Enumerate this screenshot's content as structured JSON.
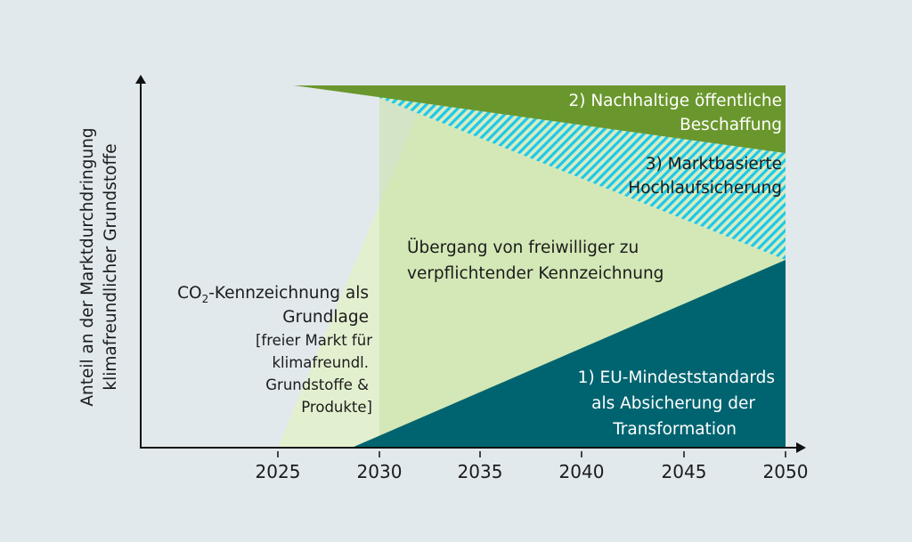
{
  "y_axis_label": [
    "Anteil an der Marktdurchdringung",
    "klimafreundlicher Grundstoffe"
  ],
  "x_ticks": [
    "2025",
    "2030",
    "2035",
    "2040",
    "2045",
    "2050"
  ],
  "areas": {
    "public_procurement": [
      "2) Nachhaltige öffentliche",
      "Beschaffung"
    ],
    "market_ramp_up": [
      "3) Marktbasierte",
      "Hochlaufsicherung"
    ],
    "transition": [
      "Übergang von freiwilliger zu",
      "verpflichtender Kennzeichnung"
    ],
    "co2_label": {
      "prefix": "CO",
      "sub": "2",
      "suffix": "-Kennzeichnung als",
      "line2": "Grundlage"
    },
    "free_market": [
      "[freier Markt für",
      "klimafreundl.",
      "Grundstoffe &",
      "Produkte]"
    ],
    "eu_standards": [
      "1) EU-Mindeststandards",
      "als Absicherung der",
      "Transformation"
    ]
  },
  "colors": {
    "background": "#e1e9ec",
    "public_procurement": "#6a972d",
    "hatch": "#1ec8e8",
    "transition": "#d3e8b6",
    "co2_label": "#e3f0cf",
    "overlap": "#d4e4c6",
    "eu_standards": "#006470"
  }
}
